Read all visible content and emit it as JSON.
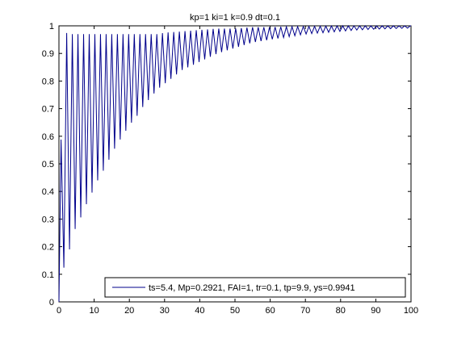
{
  "chart_data": {
    "type": "line",
    "title": "kp=1  ki=1  k=0.9  dt=0.1",
    "xlabel": "",
    "ylabel": "",
    "xlim": [
      0,
      100
    ],
    "ylim": [
      0,
      1
    ],
    "x_ticks": [
      "0",
      "10",
      "20",
      "30",
      "40",
      "50",
      "60",
      "70",
      "80",
      "90",
      "100"
    ],
    "y_ticks": [
      "0",
      "0.1",
      "0.2",
      "0.3",
      "0.4",
      "0.5",
      "0.6",
      "0.7",
      "0.8",
      "0.9",
      "1"
    ],
    "grid": false,
    "legend_position": "bottom-right",
    "line_color": "#00008b",
    "series": [
      {
        "name": "ts=5.4,  Mp=0.2921, FAI=1, tr=0.1, tp=9.9, ys=0.9941",
        "description_peaks": [
          0.98,
          0.975,
          0.97,
          0.97,
          0.97,
          0.97,
          0.97,
          0.97,
          0.97,
          0.975,
          0.98,
          0.985,
          0.99,
          0.995,
          1.0
        ],
        "x": [
          0,
          1,
          2,
          3,
          4,
          5,
          6,
          7,
          8,
          9,
          10,
          12,
          14,
          16,
          18,
          20,
          22,
          24,
          26,
          28,
          30,
          35,
          40,
          45,
          50,
          55,
          60,
          65,
          70,
          75,
          80,
          85,
          90,
          95,
          100
        ],
        "envelope_low": [
          0.0,
          0.1,
          0.16,
          0.19,
          0.24,
          0.28,
          0.3,
          0.33,
          0.36,
          0.38,
          0.42,
          0.46,
          0.51,
          0.56,
          0.6,
          0.64,
          0.67,
          0.71,
          0.74,
          0.77,
          0.79,
          0.84,
          0.87,
          0.9,
          0.92,
          0.94,
          0.95,
          0.96,
          0.97,
          0.975,
          0.98,
          0.985,
          0.988,
          0.99,
          0.992
        ],
        "envelope_high": [
          0.0,
          0.98,
          0.975,
          0.97,
          0.97,
          0.97,
          0.97,
          0.97,
          0.97,
          0.97,
          0.97,
          0.97,
          0.97,
          0.97,
          0.97,
          0.97,
          0.97,
          0.97,
          0.97,
          0.97,
          0.975,
          0.98,
          0.985,
          0.99,
          0.99,
          0.995,
          0.995,
          0.997,
          0.998,
          0.999,
          1.0,
          1.0,
          1.0,
          1.0,
          1.0
        ]
      }
    ]
  }
}
